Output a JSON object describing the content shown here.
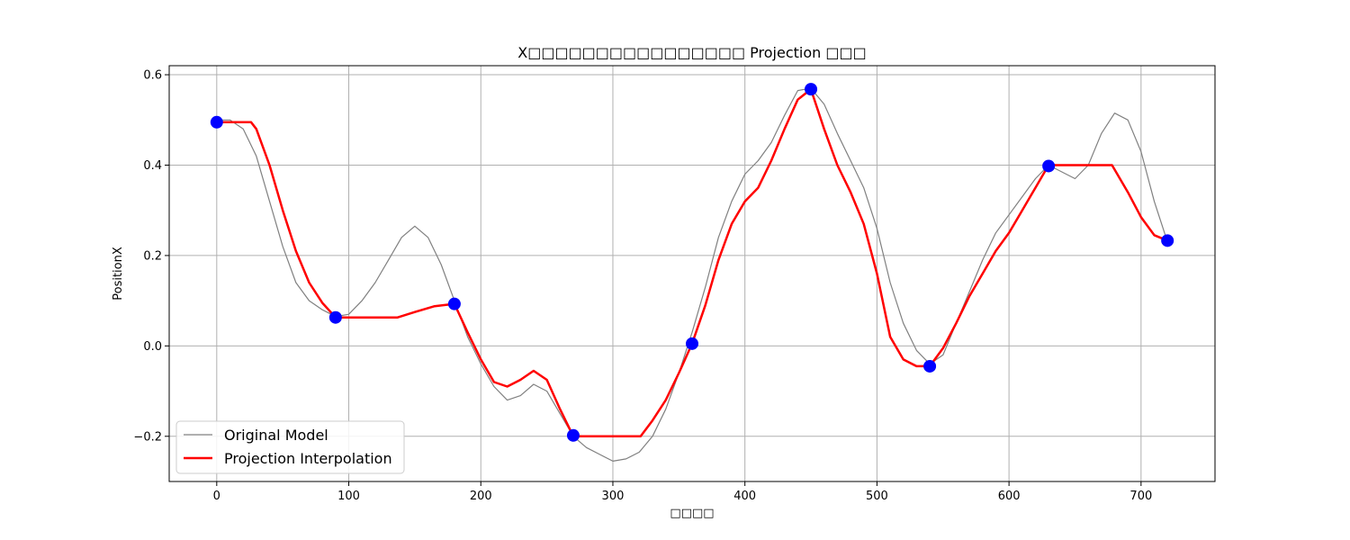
{
  "chart_data": {
    "type": "line",
    "title": "X□□□□□□□□□□□□□□□□ Projection □□□",
    "xlabel": "□□□□",
    "ylabel": "PositionX",
    "xlim": [
      -36,
      756
    ],
    "ylim": [
      -0.3,
      0.62
    ],
    "x_ticks": [
      0,
      100,
      200,
      300,
      400,
      500,
      600,
      700
    ],
    "y_ticks": [
      -0.2,
      0.0,
      0.2,
      0.4,
      0.6
    ],
    "y_tick_labels": [
      "−0.2",
      "0.0",
      "0.2",
      "0.4",
      "0.6"
    ],
    "grid": true,
    "legend": "bottom-left",
    "series": [
      {
        "name": "Original Model",
        "color": "#808080",
        "role": "line",
        "points": [
          [
            0,
            0.5
          ],
          [
            10,
            0.5
          ],
          [
            20,
            0.48
          ],
          [
            30,
            0.42
          ],
          [
            40,
            0.32
          ],
          [
            50,
            0.22
          ],
          [
            60,
            0.14
          ],
          [
            70,
            0.1
          ],
          [
            80,
            0.08
          ],
          [
            90,
            0.065
          ],
          [
            100,
            0.07
          ],
          [
            110,
            0.1
          ],
          [
            120,
            0.14
          ],
          [
            130,
            0.19
          ],
          [
            140,
            0.24
          ],
          [
            150,
            0.265
          ],
          [
            160,
            0.24
          ],
          [
            170,
            0.18
          ],
          [
            180,
            0.1
          ],
          [
            190,
            0.02
          ],
          [
            200,
            -0.04
          ],
          [
            210,
            -0.09
          ],
          [
            220,
            -0.12
          ],
          [
            230,
            -0.11
          ],
          [
            240,
            -0.085
          ],
          [
            250,
            -0.1
          ],
          [
            260,
            -0.15
          ],
          [
            270,
            -0.2
          ],
          [
            280,
            -0.225
          ],
          [
            290,
            -0.24
          ],
          [
            300,
            -0.255
          ],
          [
            310,
            -0.25
          ],
          [
            320,
            -0.235
          ],
          [
            330,
            -0.2
          ],
          [
            340,
            -0.14
          ],
          [
            350,
            -0.06
          ],
          [
            360,
            0.03
          ],
          [
            370,
            0.13
          ],
          [
            380,
            0.24
          ],
          [
            390,
            0.32
          ],
          [
            400,
            0.38
          ],
          [
            410,
            0.41
          ],
          [
            420,
            0.45
          ],
          [
            430,
            0.51
          ],
          [
            440,
            0.565
          ],
          [
            450,
            0.57
          ],
          [
            460,
            0.535
          ],
          [
            470,
            0.47
          ],
          [
            480,
            0.41
          ],
          [
            490,
            0.35
          ],
          [
            500,
            0.26
          ],
          [
            510,
            0.14
          ],
          [
            520,
            0.05
          ],
          [
            530,
            -0.01
          ],
          [
            540,
            -0.04
          ],
          [
            550,
            -0.02
          ],
          [
            560,
            0.05
          ],
          [
            570,
            0.12
          ],
          [
            580,
            0.19
          ],
          [
            590,
            0.25
          ],
          [
            600,
            0.29
          ],
          [
            610,
            0.33
          ],
          [
            620,
            0.37
          ],
          [
            630,
            0.4
          ],
          [
            640,
            0.385
          ],
          [
            650,
            0.37
          ],
          [
            660,
            0.4
          ],
          [
            670,
            0.47
          ],
          [
            680,
            0.515
          ],
          [
            690,
            0.5
          ],
          [
            700,
            0.43
          ],
          [
            710,
            0.32
          ],
          [
            720,
            0.23
          ]
        ]
      },
      {
        "name": "Projection Interpolation",
        "color": "#ff0000",
        "role": "line",
        "points": [
          [
            0,
            0.495
          ],
          [
            26,
            0.495
          ],
          [
            30,
            0.48
          ],
          [
            40,
            0.4
          ],
          [
            50,
            0.3
          ],
          [
            60,
            0.21
          ],
          [
            70,
            0.14
          ],
          [
            80,
            0.095
          ],
          [
            90,
            0.063
          ],
          [
            137,
            0.063
          ],
          [
            150,
            0.075
          ],
          [
            165,
            0.088
          ],
          [
            180,
            0.093
          ],
          [
            190,
            0.03
          ],
          [
            200,
            -0.03
          ],
          [
            210,
            -0.08
          ],
          [
            220,
            -0.09
          ],
          [
            230,
            -0.075
          ],
          [
            240,
            -0.055
          ],
          [
            250,
            -0.075
          ],
          [
            260,
            -0.14
          ],
          [
            270,
            -0.2
          ],
          [
            321,
            -0.2
          ],
          [
            330,
            -0.165
          ],
          [
            340,
            -0.12
          ],
          [
            350,
            -0.06
          ],
          [
            360,
            0.005
          ],
          [
            370,
            0.09
          ],
          [
            380,
            0.19
          ],
          [
            390,
            0.27
          ],
          [
            400,
            0.32
          ],
          [
            410,
            0.35
          ],
          [
            420,
            0.41
          ],
          [
            430,
            0.48
          ],
          [
            440,
            0.545
          ],
          [
            450,
            0.568
          ],
          [
            460,
            0.48
          ],
          [
            470,
            0.4
          ],
          [
            480,
            0.34
          ],
          [
            490,
            0.27
          ],
          [
            500,
            0.16
          ],
          [
            510,
            0.02
          ],
          [
            520,
            -0.03
          ],
          [
            530,
            -0.045
          ],
          [
            540,
            -0.045
          ],
          [
            550,
            -0.005
          ],
          [
            560,
            0.05
          ],
          [
            570,
            0.11
          ],
          [
            580,
            0.16
          ],
          [
            590,
            0.21
          ],
          [
            600,
            0.25
          ],
          [
            610,
            0.3
          ],
          [
            620,
            0.35
          ],
          [
            630,
            0.4
          ],
          [
            678,
            0.4
          ],
          [
            690,
            0.34
          ],
          [
            700,
            0.285
          ],
          [
            710,
            0.245
          ],
          [
            720,
            0.233
          ]
        ]
      },
      {
        "name": "",
        "color": "#0000ff",
        "role": "markers",
        "points": [
          [
            0,
            0.495
          ],
          [
            90,
            0.063
          ],
          [
            180,
            0.093
          ],
          [
            270,
            -0.198
          ],
          [
            360,
            0.005
          ],
          [
            450,
            0.568
          ],
          [
            540,
            -0.045
          ],
          [
            630,
            0.398
          ],
          [
            720,
            0.233
          ]
        ]
      }
    ]
  }
}
